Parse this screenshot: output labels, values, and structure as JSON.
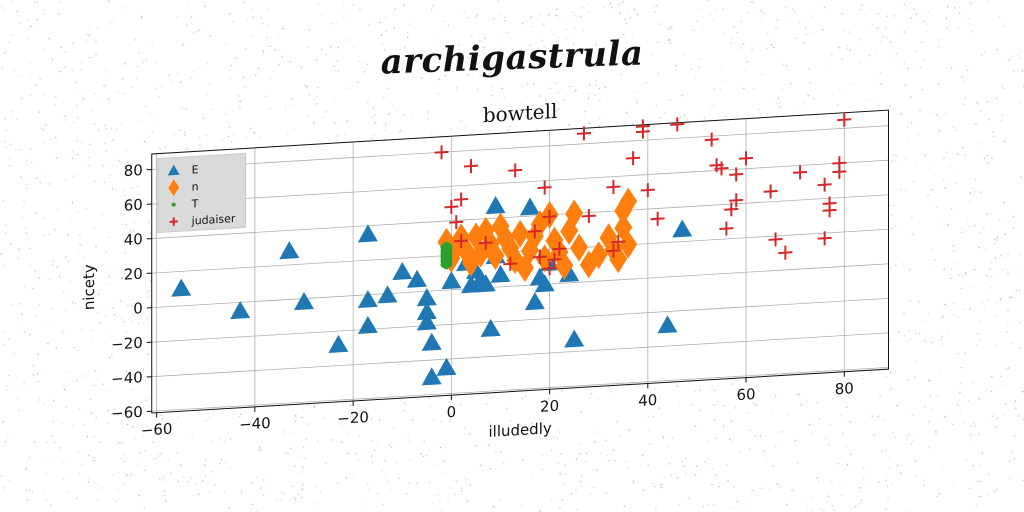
{
  "supertitle": "archigastrula",
  "chart_data": {
    "type": "scatter",
    "title": "bowtell",
    "xlabel": "illudedly",
    "ylabel": "nicety",
    "xlim": [
      -61,
      89
    ],
    "ylim": [
      -61,
      89
    ],
    "xticks": [
      -60,
      -40,
      -20,
      0,
      20,
      40,
      60,
      80
    ],
    "yticks": [
      -60,
      -40,
      -20,
      0,
      20,
      40,
      60,
      80
    ],
    "grid": true,
    "legend_position": "top-left",
    "series": [
      {
        "name": "E",
        "marker": "triangle",
        "color": "#1f77b4",
        "points": [
          [
            -55,
            10
          ],
          [
            -43,
            -5
          ],
          [
            -33,
            28
          ],
          [
            -30,
            -2
          ],
          [
            -23,
            -28
          ],
          [
            -17,
            -3
          ],
          [
            -17,
            -18
          ],
          [
            -17,
            35
          ],
          [
            -13,
            -1
          ],
          [
            -10,
            12
          ],
          [
            -7,
            7
          ],
          [
            -5,
            -4
          ],
          [
            -5,
            -12
          ],
          [
            -5,
            -18
          ],
          [
            -4,
            -30
          ],
          [
            -4,
            -50
          ],
          [
            -1,
            -45
          ],
          [
            0,
            5
          ],
          [
            3,
            15
          ],
          [
            4,
            2
          ],
          [
            5,
            10
          ],
          [
            6,
            5
          ],
          [
            7,
            2
          ],
          [
            8,
            -24
          ],
          [
            9,
            18
          ],
          [
            9,
            47
          ],
          [
            10,
            7
          ],
          [
            16,
            45
          ],
          [
            17,
            -10
          ],
          [
            18,
            4
          ],
          [
            19,
            0
          ],
          [
            20,
            12
          ],
          [
            24,
            5
          ],
          [
            25,
            -33
          ],
          [
            44,
            -28
          ],
          [
            47,
            27
          ]
        ]
      },
      {
        "name": "n",
        "marker": "diamond",
        "color": "#ff7f0e",
        "points": [
          [
            -1,
            28
          ],
          [
            0,
            18
          ],
          [
            1,
            25
          ],
          [
            2,
            30
          ],
          [
            3,
            22
          ],
          [
            4,
            15
          ],
          [
            5,
            30
          ],
          [
            6,
            20
          ],
          [
            7,
            33
          ],
          [
            8,
            25
          ],
          [
            9,
            18
          ],
          [
            10,
            35
          ],
          [
            11,
            28
          ],
          [
            12,
            22
          ],
          [
            13,
            15
          ],
          [
            14,
            30
          ],
          [
            15,
            10
          ],
          [
            16,
            20
          ],
          [
            17,
            28
          ],
          [
            18,
            35
          ],
          [
            19,
            15
          ],
          [
            20,
            40
          ],
          [
            21,
            25
          ],
          [
            22,
            18
          ],
          [
            23,
            10
          ],
          [
            24,
            30
          ],
          [
            25,
            40
          ],
          [
            26,
            20
          ],
          [
            28,
            10
          ],
          [
            30,
            15
          ],
          [
            32,
            25
          ],
          [
            33,
            18
          ],
          [
            34,
            12
          ],
          [
            35,
            30
          ],
          [
            35,
            40
          ],
          [
            36,
            20
          ],
          [
            36,
            45
          ]
        ]
      },
      {
        "name": "T",
        "marker": "circle",
        "color": "#2ca02c",
        "points": [
          [
            -1.5,
            15
          ],
          [
            -1.5,
            17
          ],
          [
            -1.5,
            19
          ],
          [
            -1.5,
            21
          ],
          [
            -1.5,
            23
          ],
          [
            -1.5,
            25
          ],
          [
            -1,
            14
          ],
          [
            -1,
            16
          ],
          [
            -1,
            18
          ],
          [
            -1,
            20
          ],
          [
            -1,
            22
          ],
          [
            -1,
            24
          ],
          [
            -1,
            26
          ],
          [
            -0.5,
            15
          ],
          [
            -0.5,
            17
          ],
          [
            -0.5,
            19
          ],
          [
            -0.5,
            21
          ],
          [
            -0.5,
            23
          ],
          [
            -0.5,
            25
          ]
        ]
      },
      {
        "name": "judaiser",
        "marker": "plus",
        "color": "#d62728",
        "points": [
          [
            -2,
            80
          ],
          [
            0,
            48
          ],
          [
            1,
            39
          ],
          [
            2,
            28
          ],
          [
            2,
            52
          ],
          [
            4,
            71
          ],
          [
            7,
            26
          ],
          [
            12,
            13
          ],
          [
            13,
            67
          ],
          [
            17,
            31
          ],
          [
            18,
            16
          ],
          [
            19,
            56
          ],
          [
            20,
            39
          ],
          [
            20,
            9
          ],
          [
            21,
            14
          ],
          [
            22,
            20
          ],
          [
            28,
            38
          ],
          [
            27,
            86
          ],
          [
            33,
            17
          ],
          [
            33,
            54
          ],
          [
            34,
            22
          ],
          [
            37,
            70
          ],
          [
            39,
            88
          ],
          [
            39,
            85
          ],
          [
            40,
            51
          ],
          [
            42,
            34
          ],
          [
            46,
            88
          ],
          [
            53,
            78
          ],
          [
            54,
            63
          ],
          [
            55,
            61
          ],
          [
            56,
            26
          ],
          [
            57,
            37
          ],
          [
            58,
            57
          ],
          [
            58,
            42
          ],
          [
            60,
            66
          ],
          [
            65,
            46
          ],
          [
            66,
            18
          ],
          [
            68,
            10
          ],
          [
            71,
            56
          ],
          [
            76,
            17
          ],
          [
            76,
            48
          ],
          [
            77,
            33
          ],
          [
            77,
            37
          ],
          [
            79,
            60
          ],
          [
            79,
            55
          ],
          [
            80,
            85
          ]
        ]
      }
    ]
  }
}
